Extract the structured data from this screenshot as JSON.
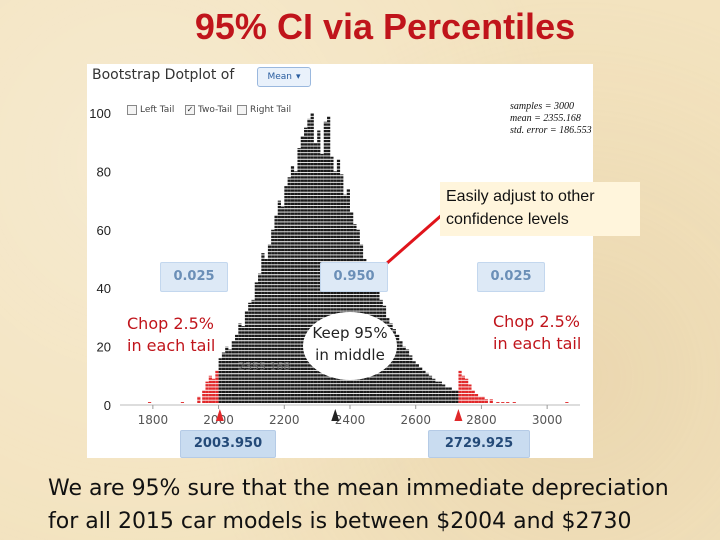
{
  "slide": {
    "title": "95% CI via Percentiles",
    "conclusion_line1": "We are 95% sure that the mean immediate depreciation",
    "conclusion_line2": "for all 2015 car models is  between $2004 and $2730"
  },
  "panel": {
    "title": "Bootstrap Dotplot of",
    "statistic_dropdown": "Mean",
    "tail_options": [
      {
        "label": "Left Tail",
        "checked": false
      },
      {
        "label": "Two-Tail",
        "checked": true
      },
      {
        "label": "Right Tail",
        "checked": false
      }
    ],
    "summary": {
      "samples": "samples = 3000",
      "mean": "mean = 2355.168",
      "std_error": "std. error = 186.553"
    },
    "proportions": {
      "left": "0.025",
      "middle": "0.950",
      "right": "0.025"
    },
    "bounds": {
      "lower": "2003.950",
      "upper": "2729.925"
    },
    "mean_marker": "2355.168"
  },
  "annotations": {
    "callout_line1": "Easily adjust to other",
    "callout_line2": "confidence levels",
    "chop_left_line1": "Chop 2.5%",
    "chop_left_line2": "in each tail",
    "chop_right_line1": "Chop 2.5%",
    "chop_right_line2": "in each tail",
    "keep_line1": "Keep 95%",
    "keep_line2": "in middle"
  },
  "colors": {
    "title_red": "#c0141b",
    "tail_dots": "#e0282a",
    "middle_dots": "#1a1a1a",
    "arrow": "#e0141b"
  },
  "chart_data": {
    "type": "scatter",
    "title": "",
    "xlabel": "",
    "ylabel": "",
    "xlim": [
      1700,
      3100
    ],
    "ylim": [
      0,
      100
    ],
    "x_ticks": [
      "1800",
      "2000",
      "2200",
      "2400",
      "2600",
      "2800",
      "3000"
    ],
    "y_ticks": [
      "0",
      "20",
      "40",
      "60",
      "80",
      "100"
    ],
    "lower_cutoff": 2003.95,
    "upper_cutoff": 2729.925,
    "bins": [
      {
        "x": 1790,
        "count": 1
      },
      {
        "x": 1890,
        "count": 1
      },
      {
        "x": 1940,
        "count": 3
      },
      {
        "x": 1955,
        "count": 5
      },
      {
        "x": 1965,
        "count": 8
      },
      {
        "x": 1975,
        "count": 10
      },
      {
        "x": 1985,
        "count": 9
      },
      {
        "x": 1995,
        "count": 12
      },
      {
        "x": 2005,
        "count": 16
      },
      {
        "x": 2015,
        "count": 18
      },
      {
        "x": 2025,
        "count": 20
      },
      {
        "x": 2035,
        "count": 19
      },
      {
        "x": 2045,
        "count": 22
      },
      {
        "x": 2055,
        "count": 24
      },
      {
        "x": 2065,
        "count": 28
      },
      {
        "x": 2075,
        "count": 27
      },
      {
        "x": 2085,
        "count": 32
      },
      {
        "x": 2095,
        "count": 35
      },
      {
        "x": 2105,
        "count": 36
      },
      {
        "x": 2115,
        "count": 42
      },
      {
        "x": 2125,
        "count": 45
      },
      {
        "x": 2135,
        "count": 52
      },
      {
        "x": 2145,
        "count": 50
      },
      {
        "x": 2155,
        "count": 55
      },
      {
        "x": 2165,
        "count": 60
      },
      {
        "x": 2175,
        "count": 65
      },
      {
        "x": 2185,
        "count": 70
      },
      {
        "x": 2195,
        "count": 68
      },
      {
        "x": 2205,
        "count": 75
      },
      {
        "x": 2215,
        "count": 78
      },
      {
        "x": 2225,
        "count": 82
      },
      {
        "x": 2235,
        "count": 80
      },
      {
        "x": 2245,
        "count": 88
      },
      {
        "x": 2255,
        "count": 92
      },
      {
        "x": 2265,
        "count": 95
      },
      {
        "x": 2275,
        "count": 98
      },
      {
        "x": 2285,
        "count": 100
      },
      {
        "x": 2295,
        "count": 90
      },
      {
        "x": 2305,
        "count": 94
      },
      {
        "x": 2315,
        "count": 86
      },
      {
        "x": 2325,
        "count": 97
      },
      {
        "x": 2335,
        "count": 99
      },
      {
        "x": 2345,
        "count": 85
      },
      {
        "x": 2355,
        "count": 80
      },
      {
        "x": 2365,
        "count": 84
      },
      {
        "x": 2375,
        "count": 79
      },
      {
        "x": 2385,
        "count": 72
      },
      {
        "x": 2395,
        "count": 74
      },
      {
        "x": 2405,
        "count": 66
      },
      {
        "x": 2415,
        "count": 62
      },
      {
        "x": 2425,
        "count": 60
      },
      {
        "x": 2435,
        "count": 55
      },
      {
        "x": 2445,
        "count": 50
      },
      {
        "x": 2455,
        "count": 48
      },
      {
        "x": 2465,
        "count": 45
      },
      {
        "x": 2475,
        "count": 42
      },
      {
        "x": 2485,
        "count": 40
      },
      {
        "x": 2495,
        "count": 36
      },
      {
        "x": 2505,
        "count": 34
      },
      {
        "x": 2515,
        "count": 30
      },
      {
        "x": 2525,
        "count": 28
      },
      {
        "x": 2535,
        "count": 26
      },
      {
        "x": 2545,
        "count": 24
      },
      {
        "x": 2555,
        "count": 22
      },
      {
        "x": 2565,
        "count": 20
      },
      {
        "x": 2575,
        "count": 19
      },
      {
        "x": 2585,
        "count": 17
      },
      {
        "x": 2595,
        "count": 15
      },
      {
        "x": 2605,
        "count": 14
      },
      {
        "x": 2615,
        "count": 13
      },
      {
        "x": 2625,
        "count": 12
      },
      {
        "x": 2635,
        "count": 11
      },
      {
        "x": 2645,
        "count": 10
      },
      {
        "x": 2655,
        "count": 9
      },
      {
        "x": 2665,
        "count": 8
      },
      {
        "x": 2675,
        "count": 8
      },
      {
        "x": 2685,
        "count": 7
      },
      {
        "x": 2695,
        "count": 6
      },
      {
        "x": 2705,
        "count": 6
      },
      {
        "x": 2715,
        "count": 5
      },
      {
        "x": 2725,
        "count": 5
      },
      {
        "x": 2735,
        "count": 12
      },
      {
        "x": 2745,
        "count": 10
      },
      {
        "x": 2755,
        "count": 9
      },
      {
        "x": 2765,
        "count": 7
      },
      {
        "x": 2775,
        "count": 5
      },
      {
        "x": 2785,
        "count": 4
      },
      {
        "x": 2795,
        "count": 3
      },
      {
        "x": 2805,
        "count": 3
      },
      {
        "x": 2815,
        "count": 2
      },
      {
        "x": 2830,
        "count": 2
      },
      {
        "x": 2850,
        "count": 1
      },
      {
        "x": 2865,
        "count": 1
      },
      {
        "x": 2880,
        "count": 1
      },
      {
        "x": 2900,
        "count": 1
      },
      {
        "x": 3060,
        "count": 1
      }
    ]
  }
}
